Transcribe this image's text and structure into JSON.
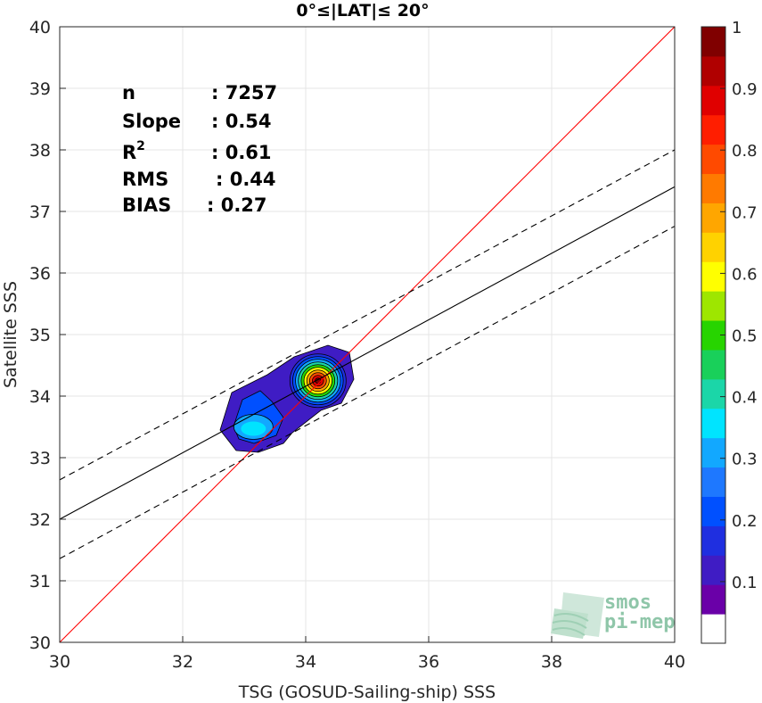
{
  "chart_data": {
    "type": "heatmap",
    "title": "0°≤|LAT|≤ 20°",
    "xlabel": "TSG (GOSUD-Sailing-ship) SSS",
    "ylabel": "Satellite SSS",
    "xlim": [
      30,
      40
    ],
    "ylim": [
      30,
      40
    ],
    "xticks": [
      "30",
      "32",
      "34",
      "36",
      "38",
      "40"
    ],
    "yticks": [
      "30",
      "31",
      "32",
      "33",
      "34",
      "35",
      "36",
      "37",
      "38",
      "39",
      "40"
    ],
    "grid": true,
    "stats": {
      "n": {
        "label": "n",
        "value": ": 7257"
      },
      "slope": {
        "label": "Slope",
        "value": ": 0.54"
      },
      "r2": {
        "label": "R",
        "sup": "2",
        "value": ": 0.61"
      },
      "rms": {
        "label": "RMS",
        "value": ": 0.44"
      },
      "bias": {
        "label": "BIAS",
        "value": ": 0.27"
      }
    },
    "lines": {
      "identity": {
        "x": [
          30,
          40
        ],
        "y": [
          30,
          40
        ],
        "color": "#ff0000"
      },
      "fit": {
        "x": [
          30,
          40
        ],
        "y": [
          32.0,
          37.4
        ],
        "color": "#000000"
      },
      "fit_upper": {
        "x": [
          30,
          40
        ],
        "y": [
          32.64,
          38.0
        ],
        "color": "#000000",
        "style": "dashed"
      },
      "fit_lower": {
        "x": [
          30,
          40
        ],
        "y": [
          31.36,
          36.76
        ],
        "color": "#000000",
        "style": "dashed"
      }
    },
    "density_peaks": [
      {
        "x": 34.2,
        "y": 34.25,
        "max_level": 1.0
      },
      {
        "x": 33.15,
        "y": 33.5,
        "max_level": 0.35
      }
    ],
    "colorbar": {
      "range": [
        0,
        1
      ],
      "ticks": [
        "0.1",
        "0.2",
        "0.3",
        "0.4",
        "0.5",
        "0.6",
        "0.7",
        "0.8",
        "0.9",
        "1"
      ],
      "colors": [
        "#ffffff",
        "#6a00a8",
        "#3f1cc4",
        "#1f2fe0",
        "#0050ff",
        "#1e78ff",
        "#12a8ff",
        "#00e4ff",
        "#1bd6a8",
        "#19d05a",
        "#27d400",
        "#9ee600",
        "#ffff00",
        "#ffd200",
        "#ffa600",
        "#ff7a00",
        "#ff4a00",
        "#ff1e00",
        "#e00000",
        "#b00000",
        "#800000"
      ]
    },
    "logo": {
      "line1": "smos",
      "line2": "pi-mep"
    }
  }
}
